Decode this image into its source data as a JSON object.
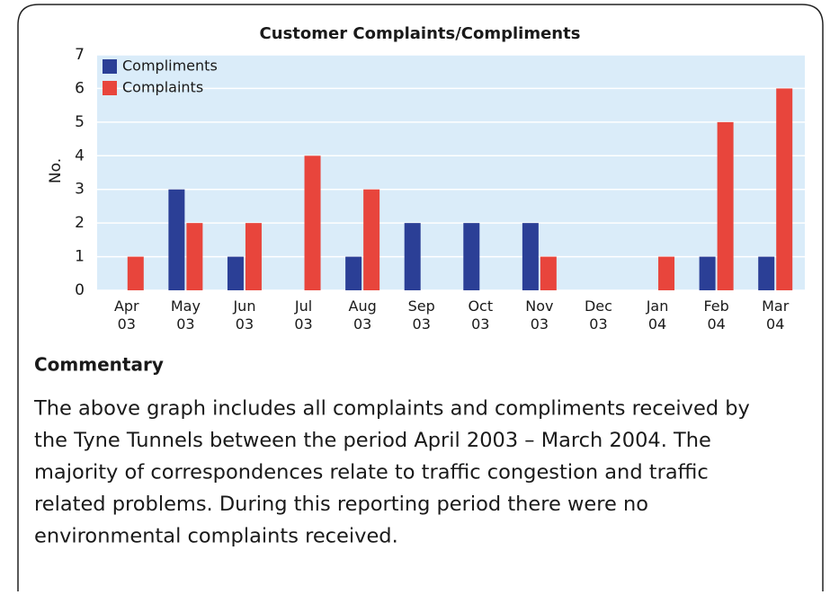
{
  "chart_data": {
    "type": "bar",
    "title": "Customer Complaints/Compliments",
    "y_label": "No.",
    "categories": [
      [
        "Apr",
        "03"
      ],
      [
        "May",
        "03"
      ],
      [
        "Jun",
        "03"
      ],
      [
        "Jul",
        "03"
      ],
      [
        "Aug",
        "03"
      ],
      [
        "Sep",
        "03"
      ],
      [
        "Oct",
        "03"
      ],
      [
        "Nov",
        "03"
      ],
      [
        "Dec",
        "03"
      ],
      [
        "Jan",
        "04"
      ],
      [
        "Feb",
        "04"
      ],
      [
        "Mar",
        "04"
      ]
    ],
    "series": [
      {
        "name": "Compliments",
        "color": "#2b3f96",
        "values": [
          0,
          3,
          1,
          0,
          1,
          2,
          2,
          2,
          0,
          0,
          1,
          1
        ]
      },
      {
        "name": "Complaints",
        "color": "#e8453c",
        "values": [
          1,
          2,
          2,
          4,
          3,
          0,
          0,
          1,
          0,
          1,
          5,
          6
        ]
      }
    ],
    "ylim": [
      0,
      7
    ],
    "yticks": [
      0,
      1,
      2,
      3,
      4,
      5,
      6,
      7
    ],
    "grid": true,
    "legend": "top-left"
  },
  "commentary": {
    "heading": "Commentary",
    "lines": [
      "The above graph includes all complaints and compliments received by",
      "the Tyne Tunnels between the period April 2003 – March 2004. The",
      "majority of correspondences relate to traffic congestion and traffic",
      "related problems. During this reporting period there were no",
      "environmental complaints received."
    ]
  }
}
